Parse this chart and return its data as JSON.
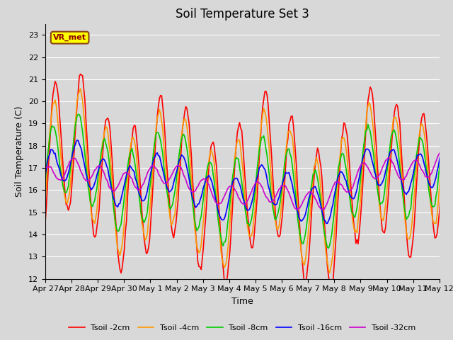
{
  "title": "Soil Temperature Set 3",
  "xlabel": "Time",
  "ylabel": "Soil Temperature (C)",
  "ylim": [
    12.0,
    23.5
  ],
  "yticks": [
    12.0,
    13.0,
    14.0,
    15.0,
    16.0,
    17.0,
    18.0,
    19.0,
    20.0,
    21.0,
    22.0,
    23.0
  ],
  "bg_color": "#d8d8d8",
  "plot_bg_color": "#d8d8d8",
  "line_colors": {
    "tsoil_2cm": "#ff0000",
    "tsoil_4cm": "#ff9900",
    "tsoil_8cm": "#00cc00",
    "tsoil_16cm": "#0000ff",
    "tsoil_32cm": "#cc00cc"
  },
  "legend_labels": [
    "Tsoil -2cm",
    "Tsoil -4cm",
    "Tsoil -8cm",
    "Tsoil -16cm",
    "Tsoil -32cm"
  ],
  "annotation_text": "VR_met",
  "xtick_labels": [
    "Apr 27",
    "Apr 28",
    "Apr 29",
    "Apr 30",
    "May 1",
    "May 2",
    "May 3",
    "May 4",
    "May 5",
    "May 6",
    "May 7",
    "May 8",
    "May 9",
    "May 10",
    "May 11",
    "May 12"
  ],
  "grid_color": "#ffffff",
  "title_fontsize": 12,
  "axis_label_fontsize": 9,
  "tick_fontsize": 8,
  "line_width": 1.2
}
